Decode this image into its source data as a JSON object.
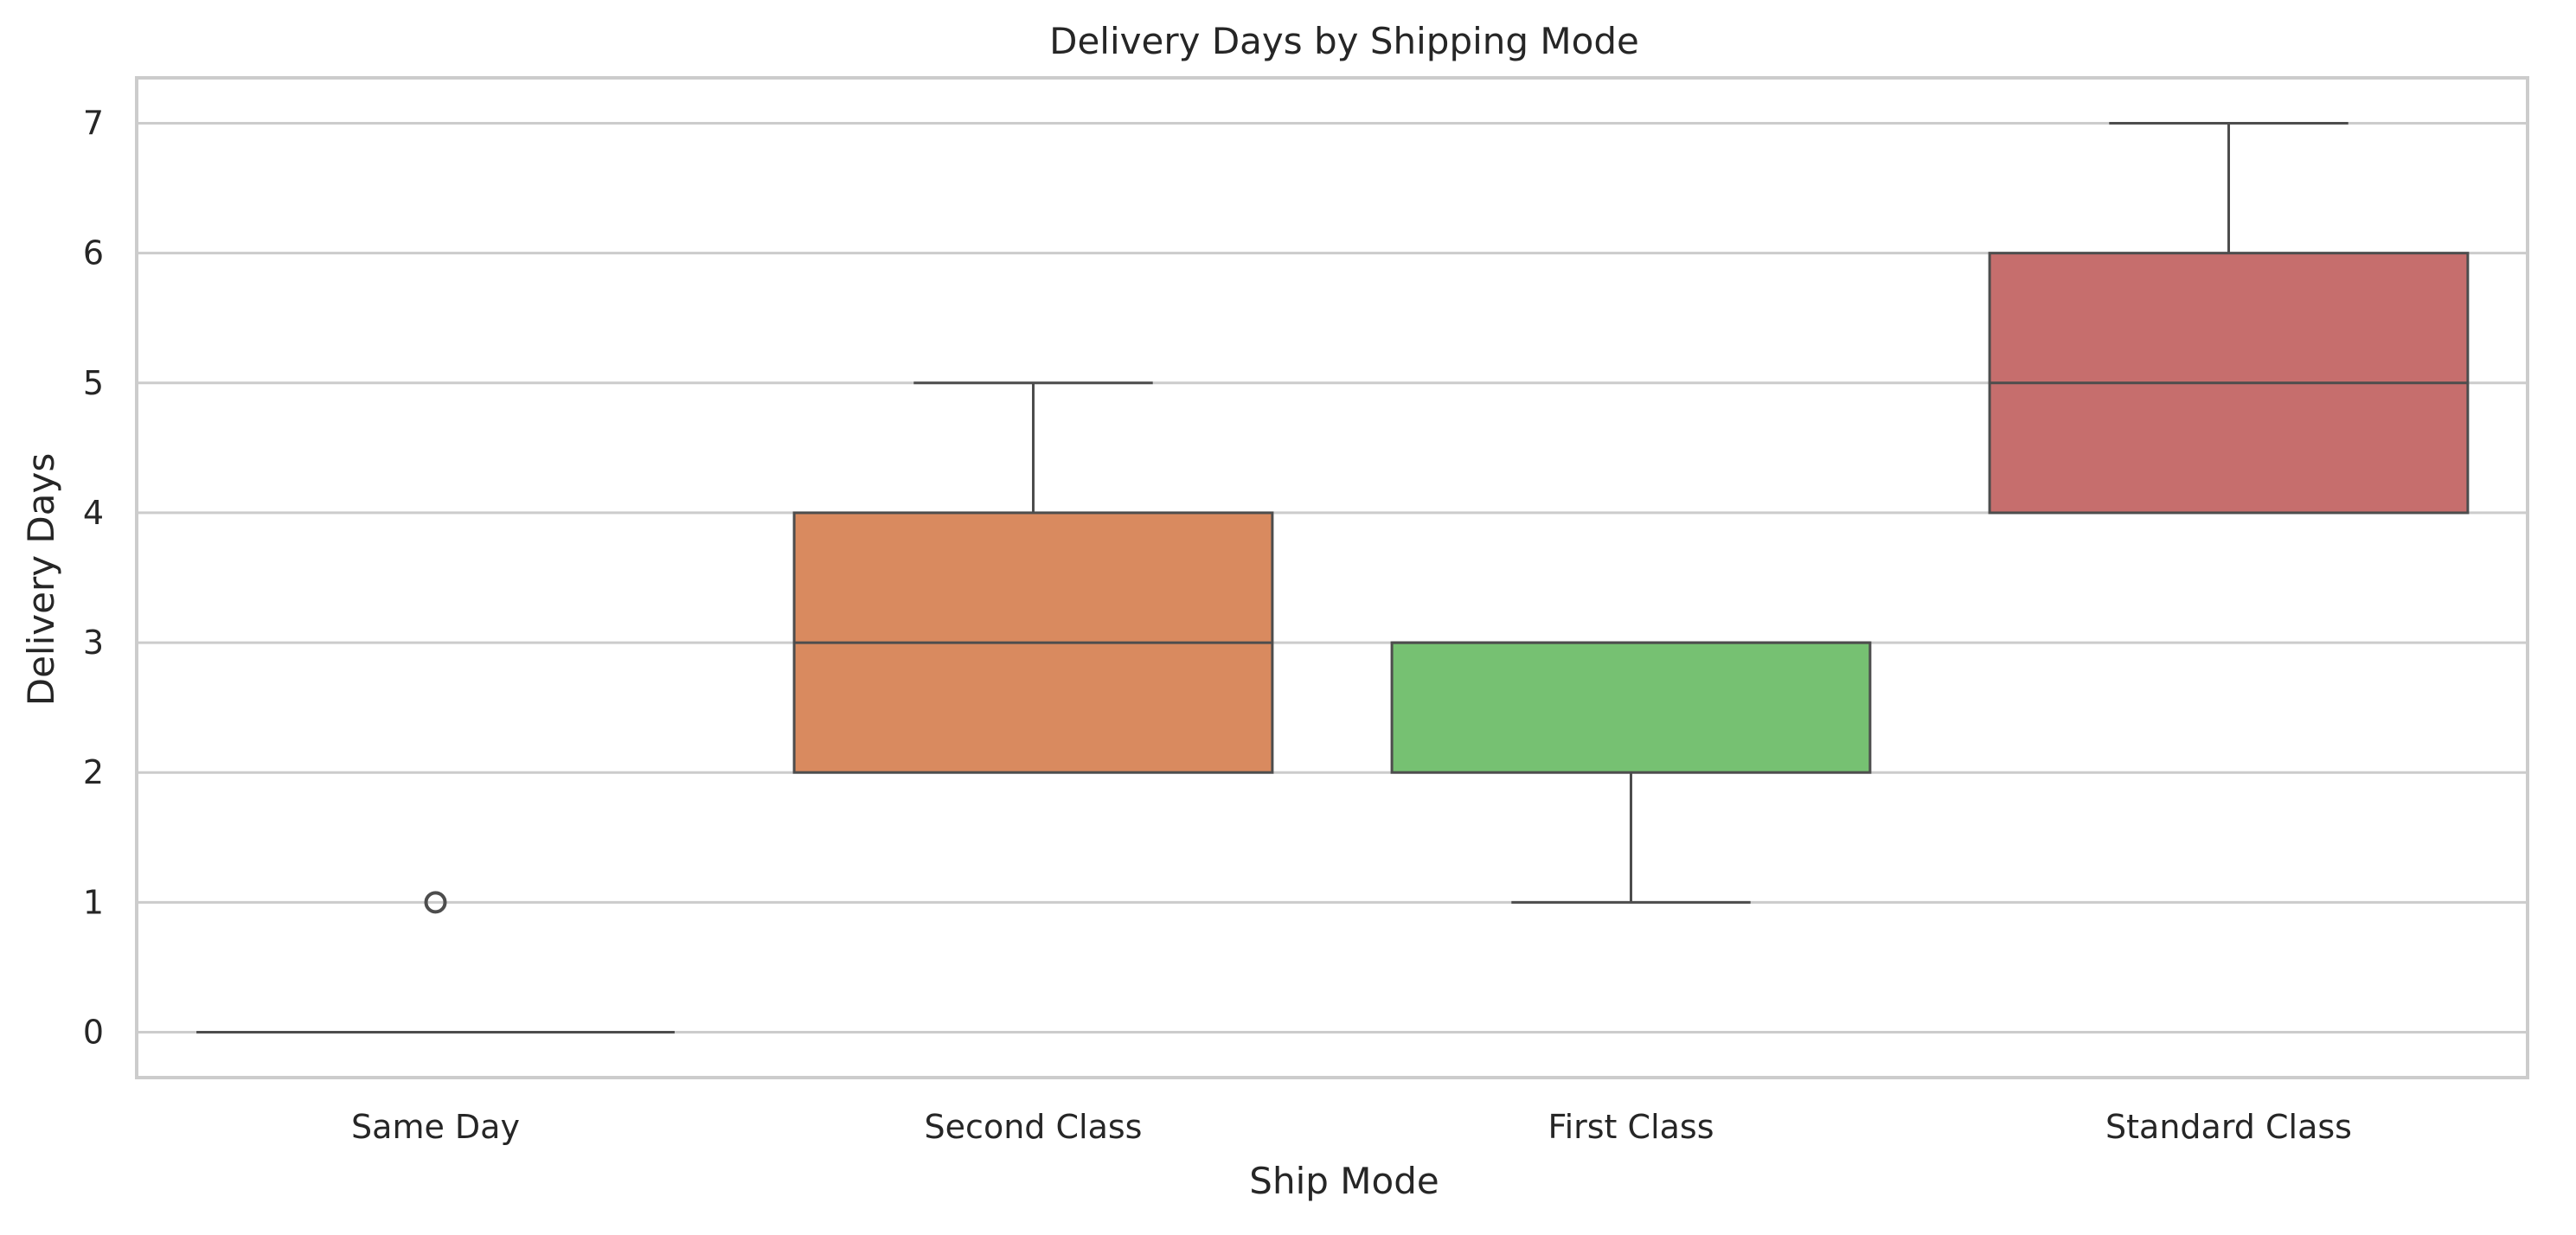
{
  "chart_data": {
    "type": "box",
    "title": "Delivery Days by Shipping Mode",
    "xlabel": "Ship Mode",
    "ylabel": "Delivery Days",
    "categories": [
      "Same Day",
      "Second Class",
      "First Class",
      "Standard Class"
    ],
    "ylim": [
      -0.35,
      7.35
    ],
    "yticks": [
      0,
      1,
      2,
      3,
      4,
      5,
      6,
      7
    ],
    "grid": true,
    "boxes": [
      {
        "category": "Same Day",
        "whisker_low": 0,
        "q1": 0,
        "median": 0,
        "q3": 0,
        "whisker_high": 0,
        "outliers": [
          1
        ],
        "color": "#5a81c4"
      },
      {
        "category": "Second Class",
        "whisker_low": 2,
        "q1": 2,
        "median": 3,
        "q3": 4,
        "whisker_high": 5,
        "outliers": [],
        "color": "#d98a5f"
      },
      {
        "category": "First Class",
        "whisker_low": 1,
        "q1": 2,
        "median": 3,
        "q3": 3,
        "whisker_high": 3,
        "outliers": [],
        "color": "#76c172"
      },
      {
        "category": "Standard Class",
        "whisker_low": 4,
        "q1": 4,
        "median": 5,
        "q3": 6,
        "whisker_high": 7,
        "outliers": [],
        "color": "#c66e6d"
      }
    ]
  }
}
